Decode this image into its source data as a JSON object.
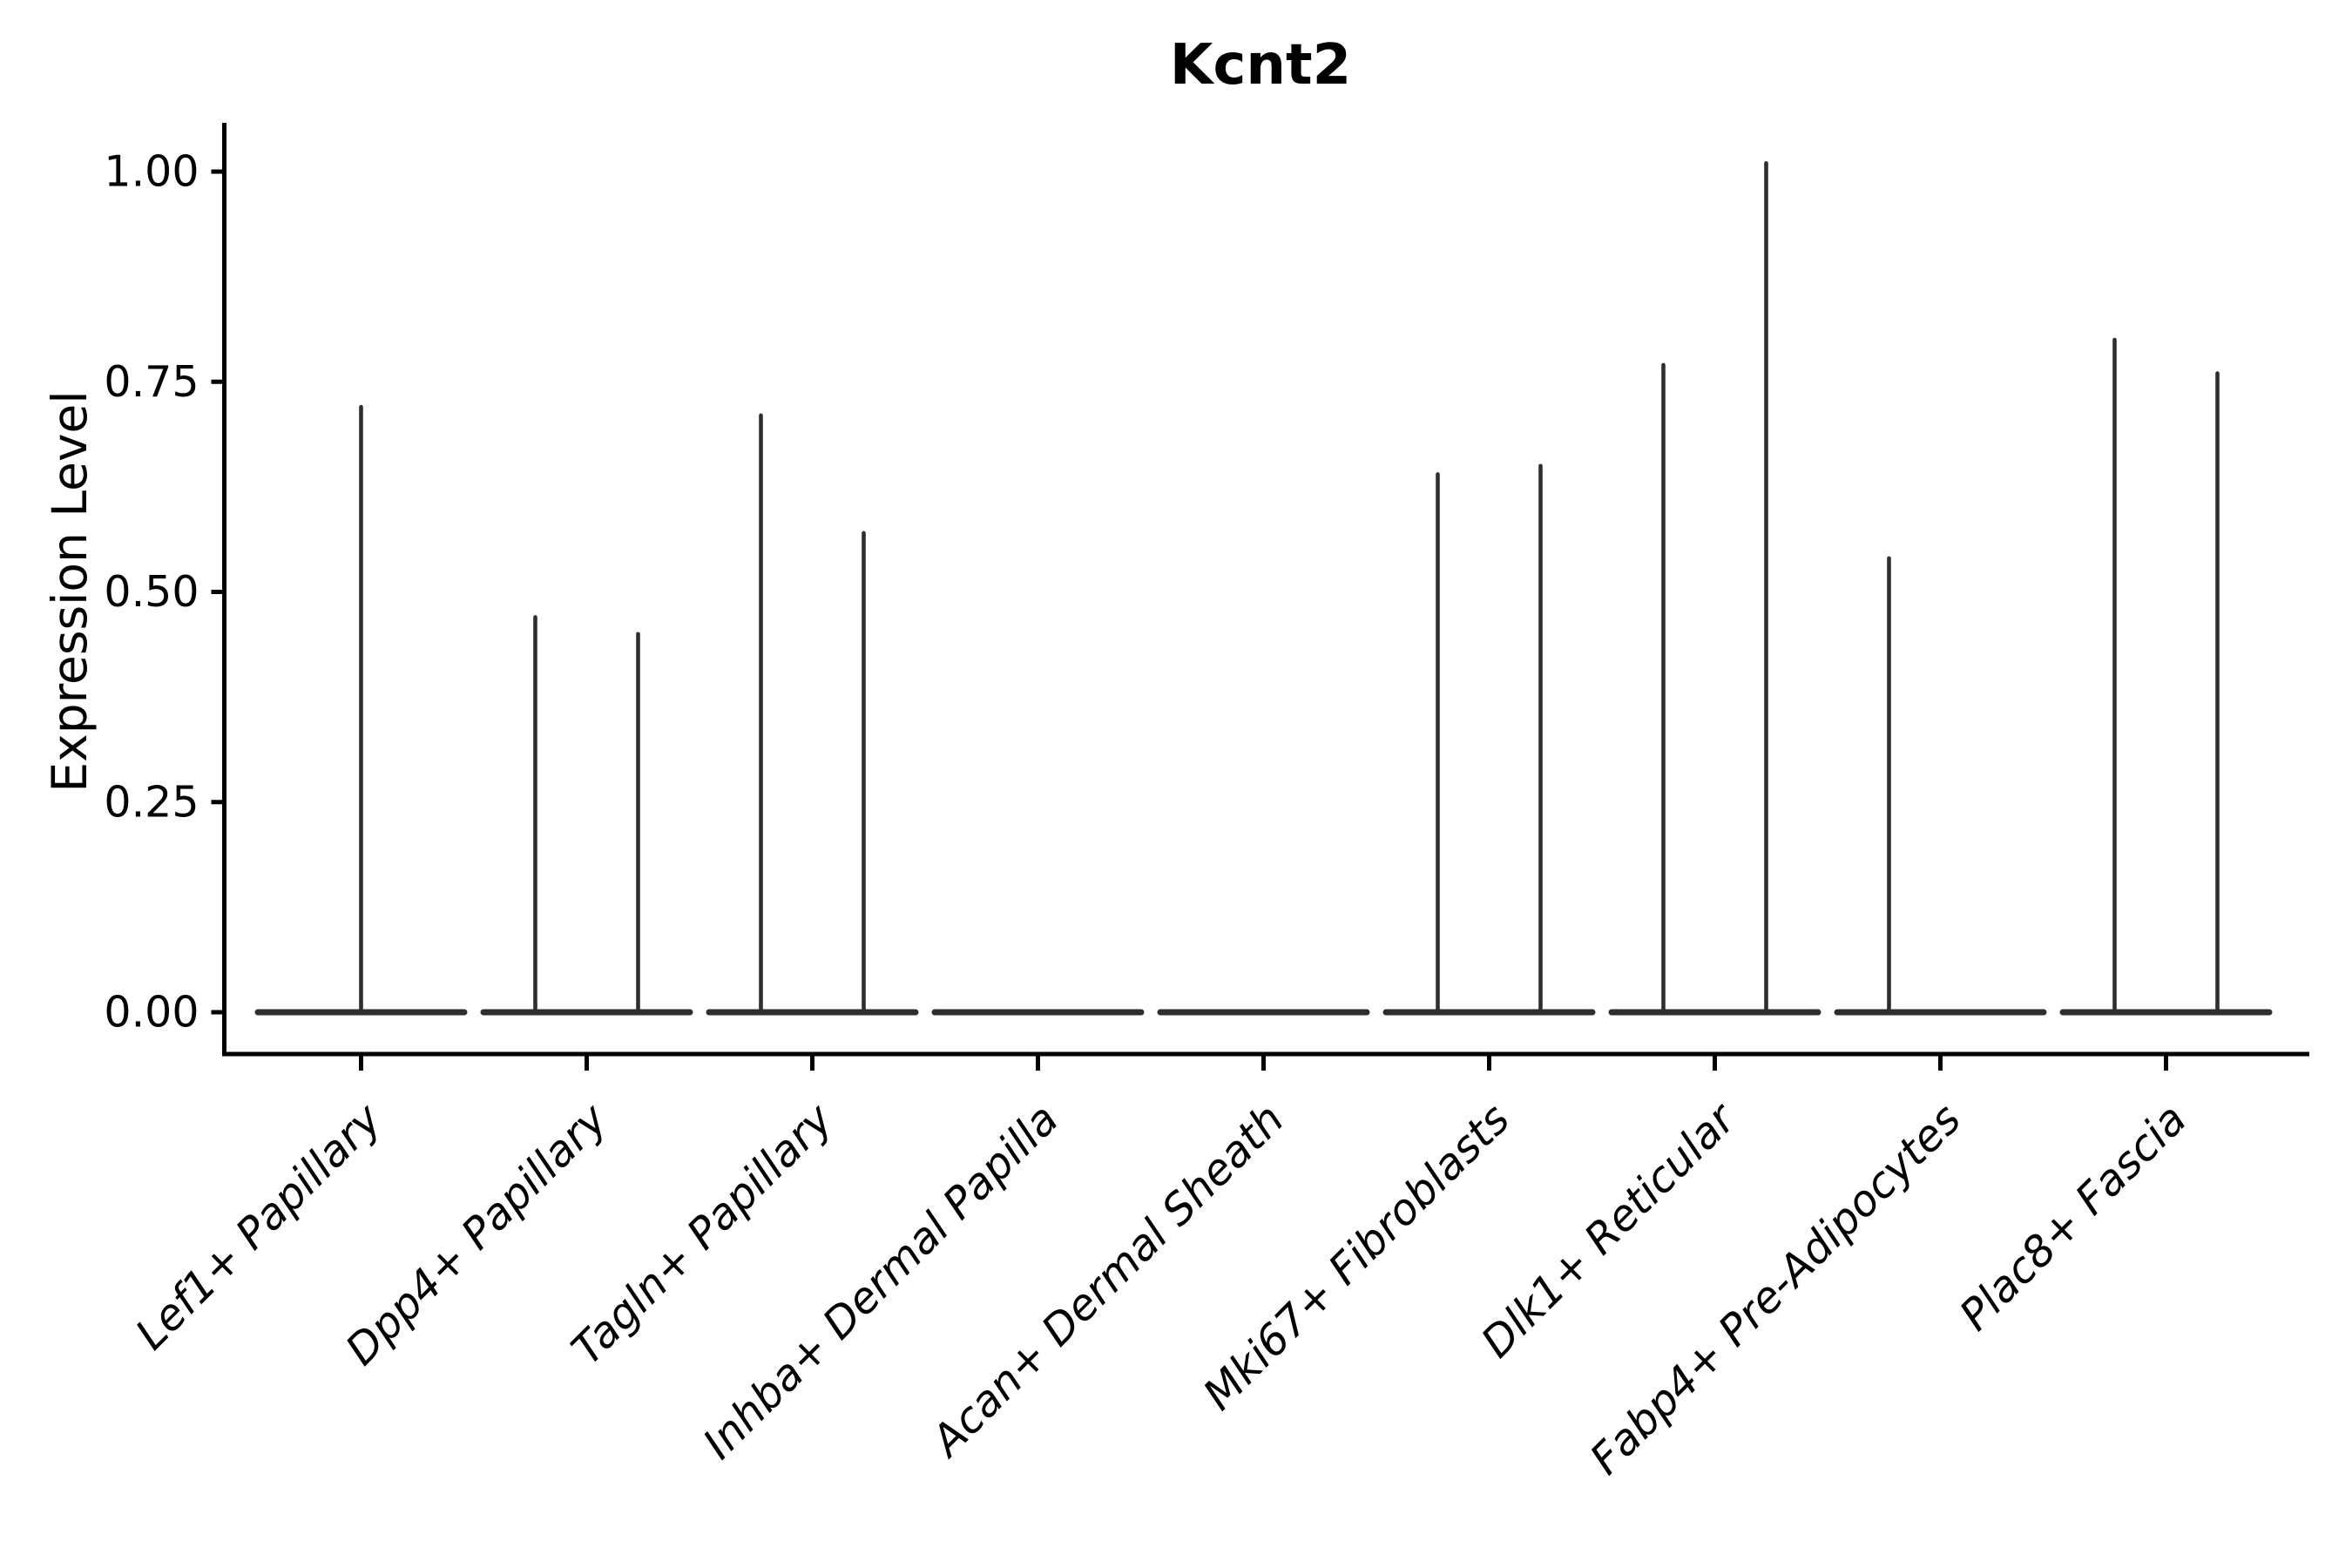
{
  "page": {
    "background_color": "#ffffff"
  },
  "chart_data": {
    "type": "violin",
    "title": "Kcnt2",
    "xlabel": "",
    "ylabel": "Expression Level",
    "ylim": [
      0,
      1.06
    ],
    "grid": false,
    "legend": false,
    "axis_color": "#000000",
    "violin_color": "#2e2e2e",
    "yticks": [
      {
        "value": 0.0,
        "label": "0.00"
      },
      {
        "value": 0.25,
        "label": "0.25"
      },
      {
        "value": 0.5,
        "label": "0.50"
      },
      {
        "value": 0.75,
        "label": "0.75"
      },
      {
        "value": 1.0,
        "label": "1.00"
      }
    ],
    "categories": [
      "Lef1+ Papillary",
      "Dpp4+ Papillary",
      "Tagln+ Papillary",
      "Inhba+ Dermal Papilla",
      "Acan+ Dermal Sheath",
      "Mki67+ Fibroblasts",
      "Dlk1+ Reticular",
      "Fabp4+ Pre-Adipocytes",
      "Plac8+ Fascia"
    ],
    "violins": [
      {
        "category": "Lef1+ Papillary",
        "zero_line": true,
        "spikes": [
          {
            "position": "center",
            "value": 0.72
          }
        ]
      },
      {
        "category": "Dpp4+ Papillary",
        "zero_line": true,
        "spikes": [
          {
            "position": "left",
            "value": 0.47
          },
          {
            "position": "right",
            "value": 0.45
          }
        ]
      },
      {
        "category": "Tagln+ Papillary",
        "zero_line": true,
        "spikes": [
          {
            "position": "left",
            "value": 0.71
          },
          {
            "position": "right",
            "value": 0.57
          }
        ]
      },
      {
        "category": "Inhba+ Dermal Papilla",
        "zero_line": true,
        "spikes": []
      },
      {
        "category": "Acan+ Dermal Sheath",
        "zero_line": true,
        "spikes": []
      },
      {
        "category": "Mki67+ Fibroblasts",
        "zero_line": true,
        "spikes": [
          {
            "position": "left",
            "value": 0.64
          },
          {
            "position": "right",
            "value": 0.65
          }
        ]
      },
      {
        "category": "Dlk1+ Reticular",
        "zero_line": true,
        "spikes": [
          {
            "position": "left",
            "value": 0.77
          },
          {
            "position": "right",
            "value": 1.01
          }
        ]
      },
      {
        "category": "Fabp4+ Pre-Adipocytes",
        "zero_line": true,
        "spikes": [
          {
            "position": "left",
            "value": 0.54
          }
        ]
      },
      {
        "category": "Plac8+ Fascia",
        "zero_line": true,
        "spikes": [
          {
            "position": "left",
            "value": 0.8
          },
          {
            "position": "right",
            "value": 0.76
          }
        ]
      }
    ]
  }
}
